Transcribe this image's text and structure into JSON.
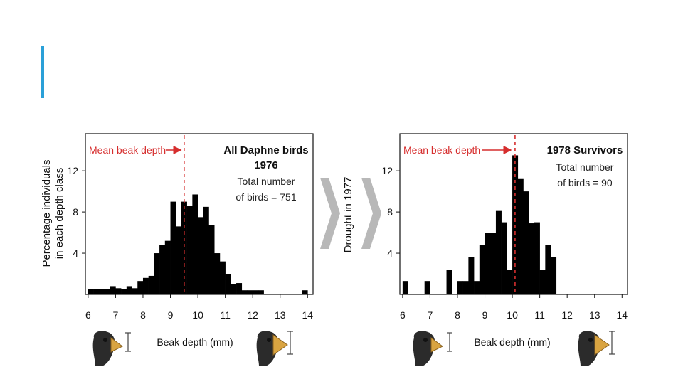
{
  "slide": {
    "accent_color": "#2aa0d8"
  },
  "middle_label": "Drought in 1977",
  "arrow_color": "#b8b8b8",
  "mean_color": "#d62e2e",
  "chart_data": [
    {
      "type": "bar",
      "name": "1976",
      "title_line1": "All Daphne birds",
      "title_line2": "1976",
      "caption_line1": "Total number",
      "caption_line2": "of birds = 751",
      "mean_label": "Mean beak depth",
      "mean": 9.5,
      "xlabel": "Beak depth (mm)",
      "ylabel_line1": "Percentage individuals",
      "ylabel_line2": "in each depth class",
      "xlim": [
        5.9,
        14.2
      ],
      "ylim": [
        0,
        15.6
      ],
      "xticks": [
        6,
        7,
        8,
        9,
        10,
        11,
        12,
        13,
        14
      ],
      "yticks": [
        4,
        8,
        12
      ],
      "bin_width": 0.2,
      "bins": [
        {
          "x": 6.0,
          "y": 0.5
        },
        {
          "x": 6.2,
          "y": 0.5
        },
        {
          "x": 6.4,
          "y": 0.5
        },
        {
          "x": 6.6,
          "y": 0.5
        },
        {
          "x": 6.8,
          "y": 0.8
        },
        {
          "x": 7.0,
          "y": 0.6
        },
        {
          "x": 7.2,
          "y": 0.5
        },
        {
          "x": 7.4,
          "y": 0.8
        },
        {
          "x": 7.6,
          "y": 0.6
        },
        {
          "x": 7.8,
          "y": 1.3
        },
        {
          "x": 8.0,
          "y": 1.6
        },
        {
          "x": 8.2,
          "y": 1.8
        },
        {
          "x": 8.4,
          "y": 4.0
        },
        {
          "x": 8.6,
          "y": 4.8
        },
        {
          "x": 8.8,
          "y": 5.2
        },
        {
          "x": 9.0,
          "y": 9.0
        },
        {
          "x": 9.2,
          "y": 6.6
        },
        {
          "x": 9.4,
          "y": 9.0
        },
        {
          "x": 9.6,
          "y": 8.6
        },
        {
          "x": 9.8,
          "y": 9.7
        },
        {
          "x": 10.0,
          "y": 7.5
        },
        {
          "x": 10.2,
          "y": 8.5
        },
        {
          "x": 10.4,
          "y": 6.7
        },
        {
          "x": 10.6,
          "y": 4.0
        },
        {
          "x": 10.8,
          "y": 3.2
        },
        {
          "x": 11.0,
          "y": 2.0
        },
        {
          "x": 11.2,
          "y": 1.0
        },
        {
          "x": 11.4,
          "y": 1.1
        },
        {
          "x": 11.6,
          "y": 0.4
        },
        {
          "x": 11.8,
          "y": 0.4
        },
        {
          "x": 12.0,
          "y": 0.4
        },
        {
          "x": 12.2,
          "y": 0.4
        },
        {
          "x": 13.8,
          "y": 0.4
        }
      ]
    },
    {
      "type": "bar",
      "name": "1978",
      "title_line1": "1978 Survivors",
      "title_line2": "",
      "caption_line1": "Total number",
      "caption_line2": "of birds = 90",
      "mean_label": "Mean beak depth",
      "mean": 10.1,
      "xlabel": "Beak depth (mm)",
      "ylabel_line1": "",
      "ylabel_line2": "",
      "xlim": [
        5.9,
        14.2
      ],
      "ylim": [
        0,
        15.6
      ],
      "xticks": [
        6,
        7,
        8,
        9,
        10,
        11,
        12,
        13,
        14
      ],
      "yticks": [
        4,
        8,
        12
      ],
      "bin_width": 0.2,
      "bins": [
        {
          "x": 6.0,
          "y": 1.3
        },
        {
          "x": 6.8,
          "y": 1.3
        },
        {
          "x": 7.6,
          "y": 2.4
        },
        {
          "x": 8.0,
          "y": 1.3
        },
        {
          "x": 8.2,
          "y": 1.3
        },
        {
          "x": 8.4,
          "y": 3.6
        },
        {
          "x": 8.6,
          "y": 1.3
        },
        {
          "x": 8.8,
          "y": 4.8
        },
        {
          "x": 9.0,
          "y": 6.0
        },
        {
          "x": 9.2,
          "y": 6.0
        },
        {
          "x": 9.4,
          "y": 8.1
        },
        {
          "x": 9.6,
          "y": 7.0
        },
        {
          "x": 9.8,
          "y": 2.4
        },
        {
          "x": 10.0,
          "y": 13.5
        },
        {
          "x": 10.2,
          "y": 11.2
        },
        {
          "x": 10.4,
          "y": 10.0
        },
        {
          "x": 10.6,
          "y": 6.9
        },
        {
          "x": 10.8,
          "y": 7.0
        },
        {
          "x": 11.0,
          "y": 2.4
        },
        {
          "x": 11.2,
          "y": 4.8
        },
        {
          "x": 11.4,
          "y": 3.6
        }
      ]
    }
  ]
}
